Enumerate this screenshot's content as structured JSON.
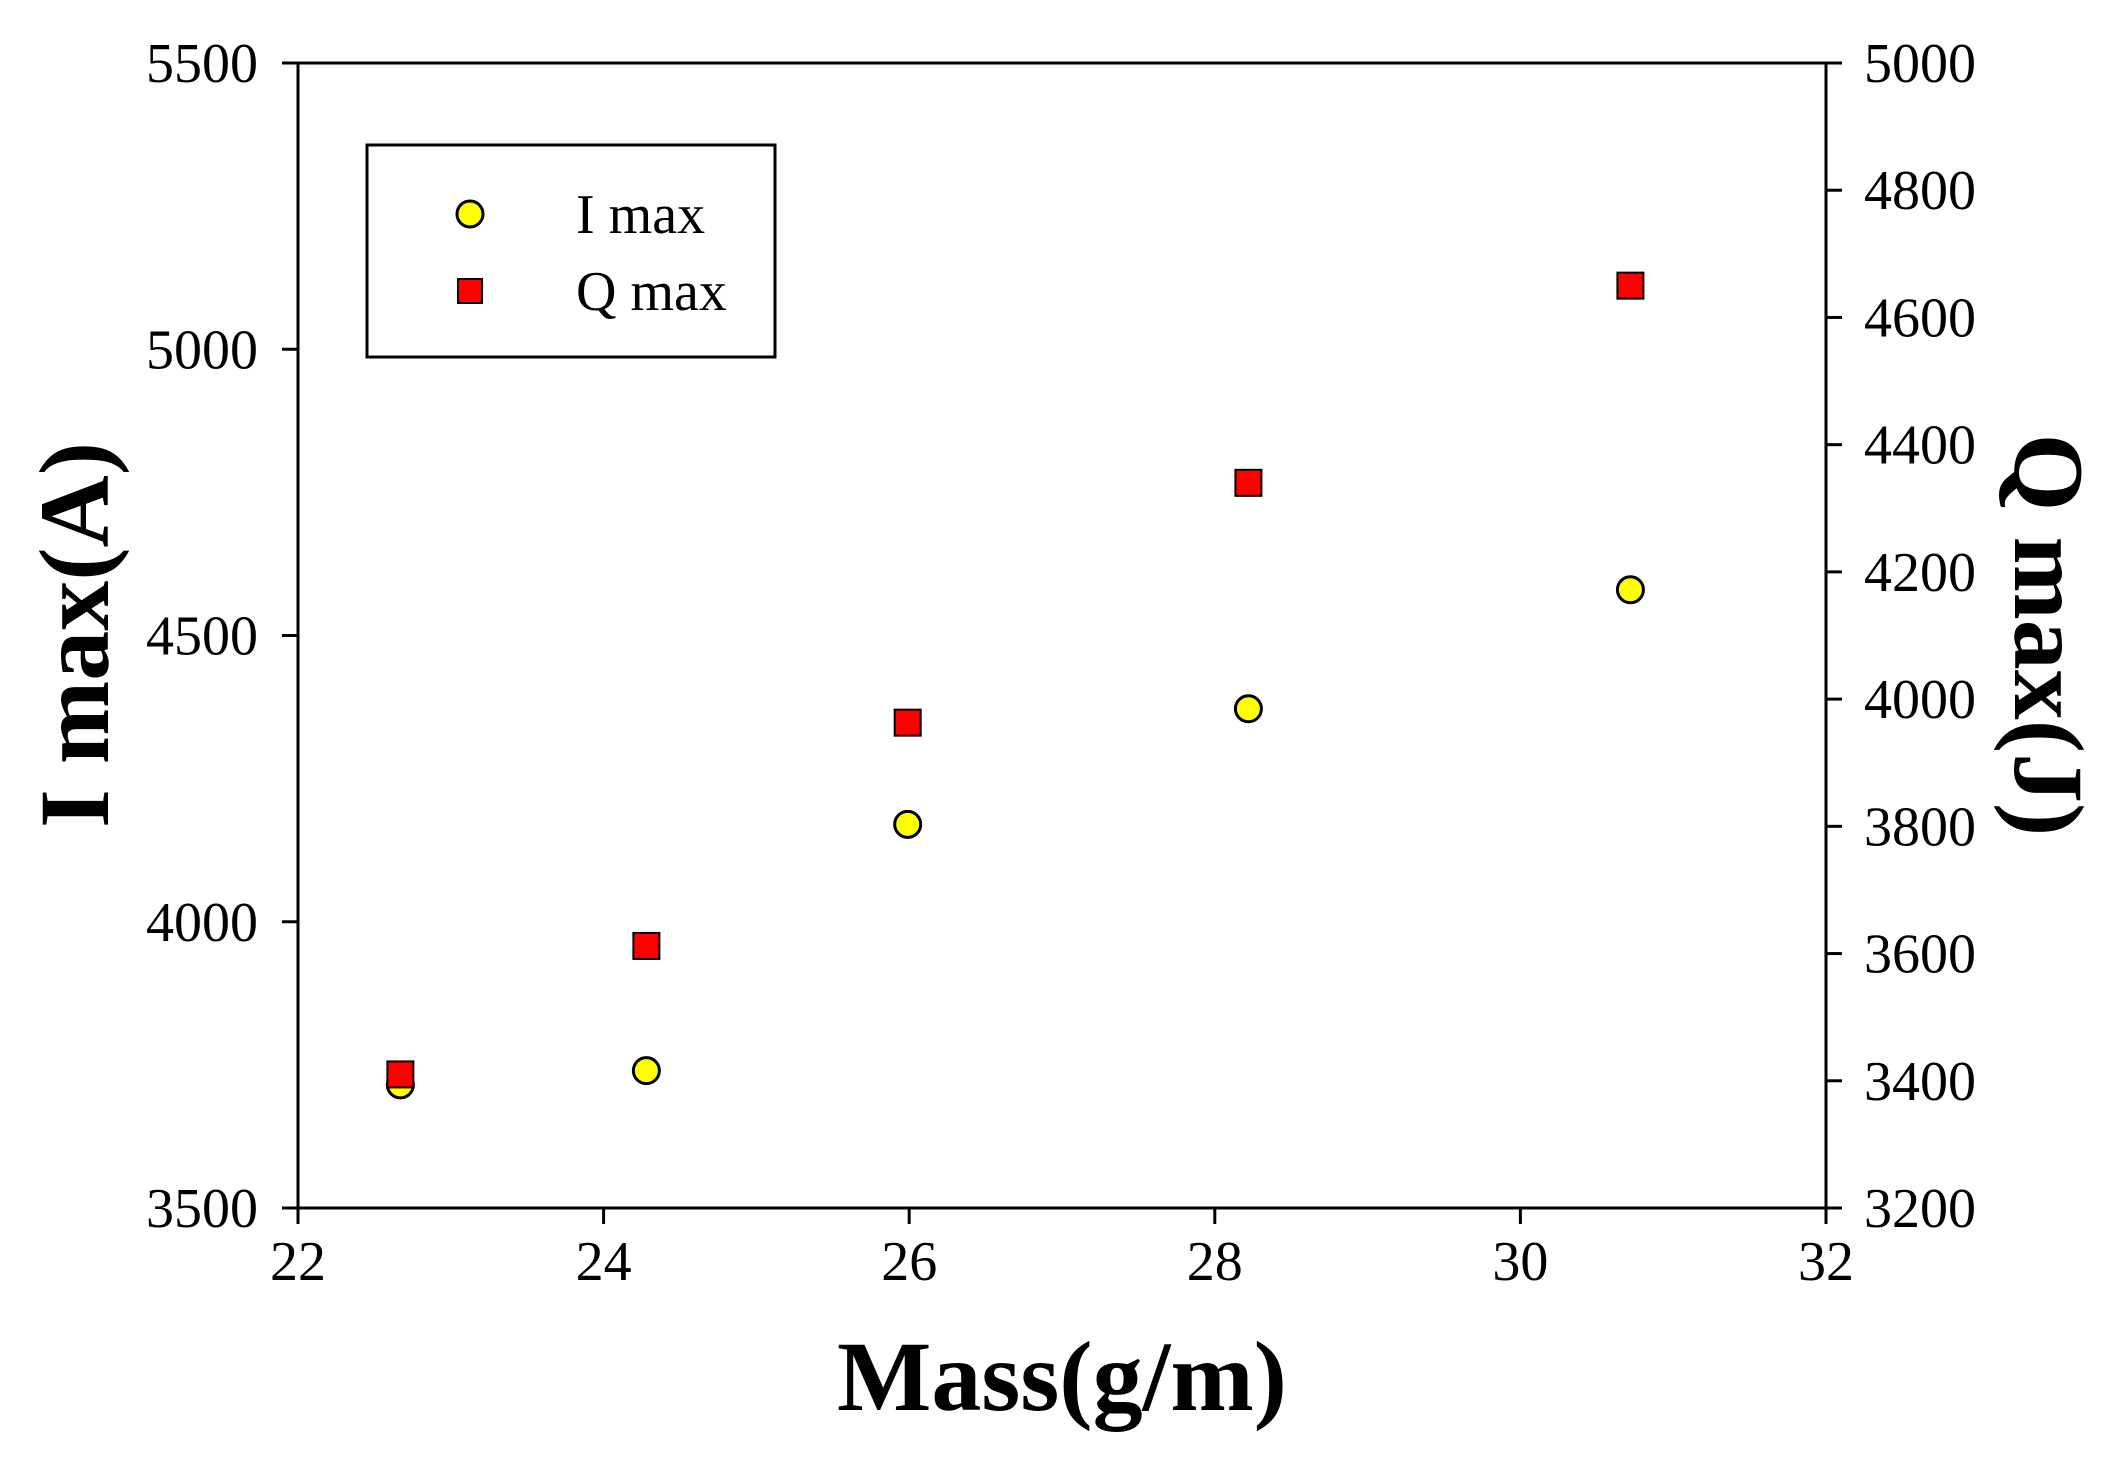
{
  "chart_data": {
    "type": "scatter",
    "xlabel": "Mass(g/m)",
    "ylabel_left": "I max(A)",
    "ylabel_right": "Q max(J)",
    "xlim": [
      22,
      32
    ],
    "ylim_left": [
      3500,
      5500
    ],
    "ylim_right": [
      3200,
      5000
    ],
    "x_ticks": [
      "22",
      "24",
      "26",
      "28",
      "30",
      "32"
    ],
    "y_left_ticks": [
      "3500",
      "4000",
      "4500",
      "5000",
      "5500"
    ],
    "y_right_ticks": [
      "3200",
      "3400",
      "3600",
      "3800",
      "4000",
      "4200",
      "4400",
      "4600",
      "4800",
      "5000"
    ],
    "legend_position": "top-left",
    "grid": false,
    "series": [
      {
        "name": "I max",
        "axis": "left",
        "marker": "circle",
        "color": "#ffff00",
        "x": [
          22.67,
          24.28,
          25.99,
          28.22,
          30.72
        ],
        "y": [
          3715,
          3740,
          4170,
          4372,
          4580
        ]
      },
      {
        "name": "Q max",
        "axis": "right",
        "marker": "square",
        "color": "#ff0000",
        "x": [
          22.67,
          24.28,
          25.99,
          28.22,
          30.72
        ],
        "y": [
          3410,
          3612,
          3963,
          4340,
          4650
        ]
      }
    ]
  }
}
